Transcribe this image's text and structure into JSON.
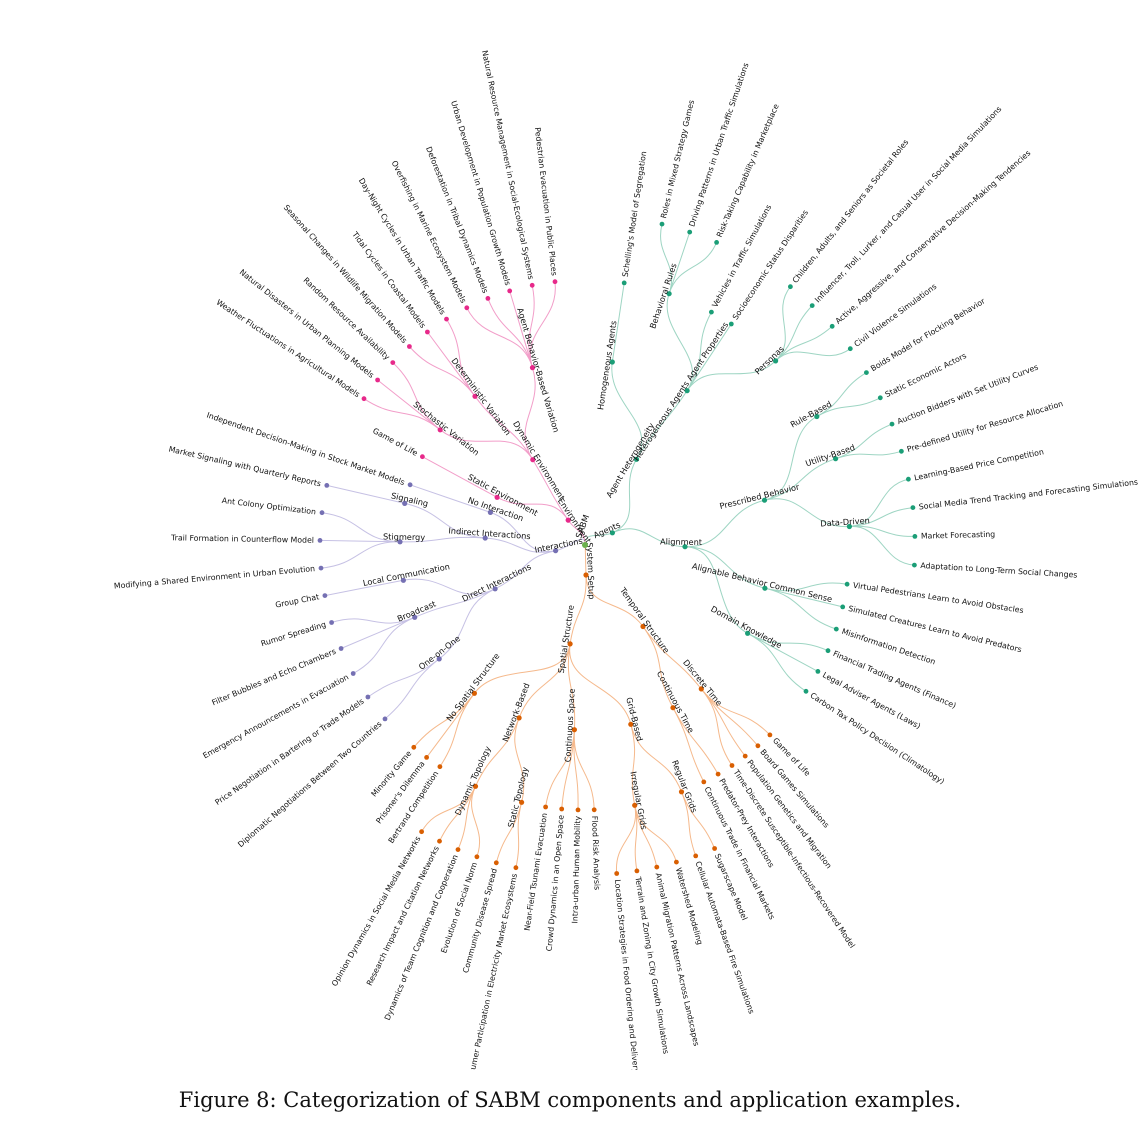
{
  "caption": "Figure 8: Categorization of SABM components and application examples.",
  "palette": {
    "link_pink": "#f29ec9",
    "node_pink": "#e7298a",
    "link_purple": "#c6c1e4",
    "node_purple": "#7570b3",
    "link_green": "#9ed5c3",
    "node_green": "#1b9e77",
    "link_orange": "#f5b98c",
    "node_orange": "#d95f02",
    "root": "#6ab04c",
    "text": "#111111"
  },
  "diagram": {
    "root": {
      "label": "SABM"
    },
    "branches": [
      {
        "label": "Agents",
        "color": "green",
        "children": [
          {
            "label": "Agent Heterogeneity",
            "children": [
              {
                "label": "Homogeneous Agents",
                "children": [
                  {
                    "label": "Schelling's Model of Segregation"
                  }
                ]
              },
              {
                "label": "Heterogeneous Agents Agent Properties",
                "children": [
                  {
                    "label": "Behavioral Rules",
                    "children": [
                      {
                        "label": "Roles in Mixed Strategy Games"
                      },
                      {
                        "label": "Driving Patterns in Urban Traffic Simulations"
                      },
                      {
                        "label": "Risk-Taking Capability in Marketplace"
                      }
                    ]
                  },
                  {
                    "label": "Vehicles in Traffic Simulations"
                  },
                  {
                    "label": "Socioeconomic Status Disparities"
                  },
                  {
                    "label": "Personas",
                    "children": [
                      {
                        "label": "Children, Adults, and Seniors as Societal Roles"
                      },
                      {
                        "label": "Influencer, Troll, Lurker, and Casual User in Social Media Simulations"
                      },
                      {
                        "label": "Active, Aggressive, and Conservative Decision-Making Tendencies"
                      },
                      {
                        "label": "Civil Violence Simulations"
                      }
                    ]
                  }
                ]
              }
            ]
          },
          {
            "label": "Alignment",
            "children": [
              {
                "label": "Prescribed Behavior",
                "children": [
                  {
                    "label": "Rule-Based",
                    "children": [
                      {
                        "label": "Boids Model for Flocking Behavior"
                      },
                      {
                        "label": "Static Economic Actors"
                      }
                    ]
                  },
                  {
                    "label": "Utility-Based",
                    "children": [
                      {
                        "label": "Auction Bidders with Set Utility Curves"
                      },
                      {
                        "label": "Pre-defined Utility for Resource Allocation"
                      }
                    ]
                  },
                  {
                    "label": "Data-Driven",
                    "children": [
                      {
                        "label": "Learning-Based Price Competition"
                      },
                      {
                        "label": "Social Media Trend Tracking and Forecasting Simulations"
                      },
                      {
                        "label": "Market Forecasting"
                      },
                      {
                        "label": "Adaptation to Long-Term Social Changes"
                      }
                    ]
                  }
                ]
              },
              {
                "label": "Alignable Behavior Common Sense",
                "children": [
                  {
                    "label": "Virtual Pedestrians Learn to Avoid Obstacles"
                  },
                  {
                    "label": "Simulated Creatures Learn to Avoid Predators"
                  },
                  {
                    "label": "Misinformation Detection"
                  }
                ]
              },
              {
                "label": "Domain Knowledge",
                "children": [
                  {
                    "label": "Financial Trading Agents (Finance)"
                  },
                  {
                    "label": "Legal Adviser Agents (Laws)"
                  },
                  {
                    "label": "Carbon Tax Policy Decision (Climatology)"
                  }
                ]
              }
            ]
          }
        ]
      },
      {
        "label": "System Setup",
        "color": "orange",
        "children": [
          {
            "label": "Temporal Structure",
            "children": [
              {
                "label": "Discrete Time",
                "children": [
                  {
                    "label": "Game of Life"
                  },
                  {
                    "label": "Board Games Simulations"
                  },
                  {
                    "label": "Population Genetics and Migration"
                  },
                  {
                    "label": "Time-Discrete Susceptible-Infectious-Recovered Model"
                  }
                ]
              },
              {
                "label": "Continuous Time",
                "children": [
                  {
                    "label": "Predator-Prey Interactions"
                  },
                  {
                    "label": "Continuous Trade in Financial Markets"
                  }
                ]
              }
            ]
          },
          {
            "label": "Spatial Structure",
            "children": [
              {
                "label": "Grid-Based",
                "children": [
                  {
                    "label": "Regular Grids",
                    "children": [
                      {
                        "label": "Sugarscape Model"
                      },
                      {
                        "label": "Cellular Automata-Based Fire Simulations"
                      }
                    ]
                  },
                  {
                    "label": "Irregular Grids",
                    "children": [
                      {
                        "label": "Watershed Modeling"
                      },
                      {
                        "label": "Animal Migration Patterns Across Landscapes"
                      },
                      {
                        "label": "Terrain and Zoning in City Growth Simulations"
                      },
                      {
                        "label": "Location Strategies in Food Ordering and Delivery Markets"
                      }
                    ]
                  }
                ]
              },
              {
                "label": "Continuous Space",
                "children": [
                  {
                    "label": "Flood Risk Analysis"
                  },
                  {
                    "label": "Intra-urban Human Mobility"
                  },
                  {
                    "label": "Crowd Dynamics in an Open Space"
                  },
                  {
                    "label": "Near-Field Tsunami Evacuation"
                  }
                ]
              },
              {
                "label": "Network-Based",
                "children": [
                  {
                    "label": "Static Topology",
                    "children": [
                      {
                        "label": "Consumer Participation in Electricity Market Ecosystems"
                      },
                      {
                        "label": "Community Disease Spread"
                      }
                    ]
                  },
                  {
                    "label": "Dynamic Topology",
                    "children": [
                      {
                        "label": "Evolution of Social Norm"
                      },
                      {
                        "label": "Dynamics of Team Cognition and Cooperation"
                      },
                      {
                        "label": "Research Impact and Citation Networks"
                      },
                      {
                        "label": "Opinion Dynamics in Social Media Networks"
                      }
                    ]
                  }
                ]
              },
              {
                "label": "No Spatial Structure",
                "children": [
                  {
                    "label": "Bertrand Competition"
                  },
                  {
                    "label": "Prisoner's Dilemma"
                  },
                  {
                    "label": "Minority Game"
                  }
                ]
              }
            ]
          }
        ]
      },
      {
        "label": "Interactions",
        "color": "purple",
        "children": [
          {
            "label": "Direct Interactions",
            "children": [
              {
                "label": "One-on-One",
                "children": [
                  {
                    "label": "Diplomatic Negotiations Between Two Countries"
                  },
                  {
                    "label": "Price Negotiation in Bartering or Trade Models"
                  }
                ]
              },
              {
                "label": "Broadcast",
                "children": [
                  {
                    "label": "Emergency Announcements in Evacuation"
                  },
                  {
                    "label": "Filter Bubbles and Echo Chambers"
                  },
                  {
                    "label": "Rumor Spreading"
                  }
                ]
              },
              {
                "label": "Local Communication",
                "children": [
                  {
                    "label": "Group Chat"
                  }
                ]
              }
            ]
          },
          {
            "label": "Indirect Interactions",
            "children": [
              {
                "label": "Stigmergy",
                "children": [
                  {
                    "label": "Modifying a Shared Environment in Urban Evolution"
                  },
                  {
                    "label": "Trail Formation in Counterflow Model"
                  },
                  {
                    "label": "Ant Colony Optimization"
                  }
                ]
              },
              {
                "label": "Signaling",
                "children": [
                  {
                    "label": "Market Signaling with Quarterly Reports"
                  }
                ]
              }
            ]
          },
          {
            "label": "No Interaction",
            "children": [
              {
                "label": "Independent Decision-Making in Stock Market Models"
              }
            ]
          }
        ]
      },
      {
        "label": "Environment",
        "color": "pink",
        "children": [
          {
            "label": "Static Environment",
            "children": [
              {
                "label": "Game of Life"
              }
            ]
          },
          {
            "label": "Dynamic Environment",
            "children": [
              {
                "label": "Stochastic Variation",
                "children": [
                  {
                    "label": "Weather Fluctuations in Agricultural Models"
                  },
                  {
                    "label": "Natural Disasters in Urban Planning Models"
                  },
                  {
                    "label": "Random Resource Availability"
                  }
                ]
              },
              {
                "label": "Deterministic Variation",
                "children": [
                  {
                    "label": "Seasonal Changes in Wildlife Migration Models"
                  },
                  {
                    "label": "Tidal Cycles in Coastal Models"
                  },
                  {
                    "label": "Day-Night Cycles in Urban Traffic Models"
                  }
                ]
              },
              {
                "label": "Agent Behavior-Based Variation",
                "children": [
                  {
                    "label": "Overfishing in Marine Ecosystem Models"
                  },
                  {
                    "label": "Deforestation in Tribal Dynamics Models"
                  },
                  {
                    "label": "Urban Development in Population Growth Models"
                  },
                  {
                    "label": "Natural Resource Management in Social-Ecological Systems"
                  },
                  {
                    "label": "Pedestrian Evacuation in Public Places"
                  }
                ]
              }
            ]
          }
        ]
      }
    ]
  }
}
